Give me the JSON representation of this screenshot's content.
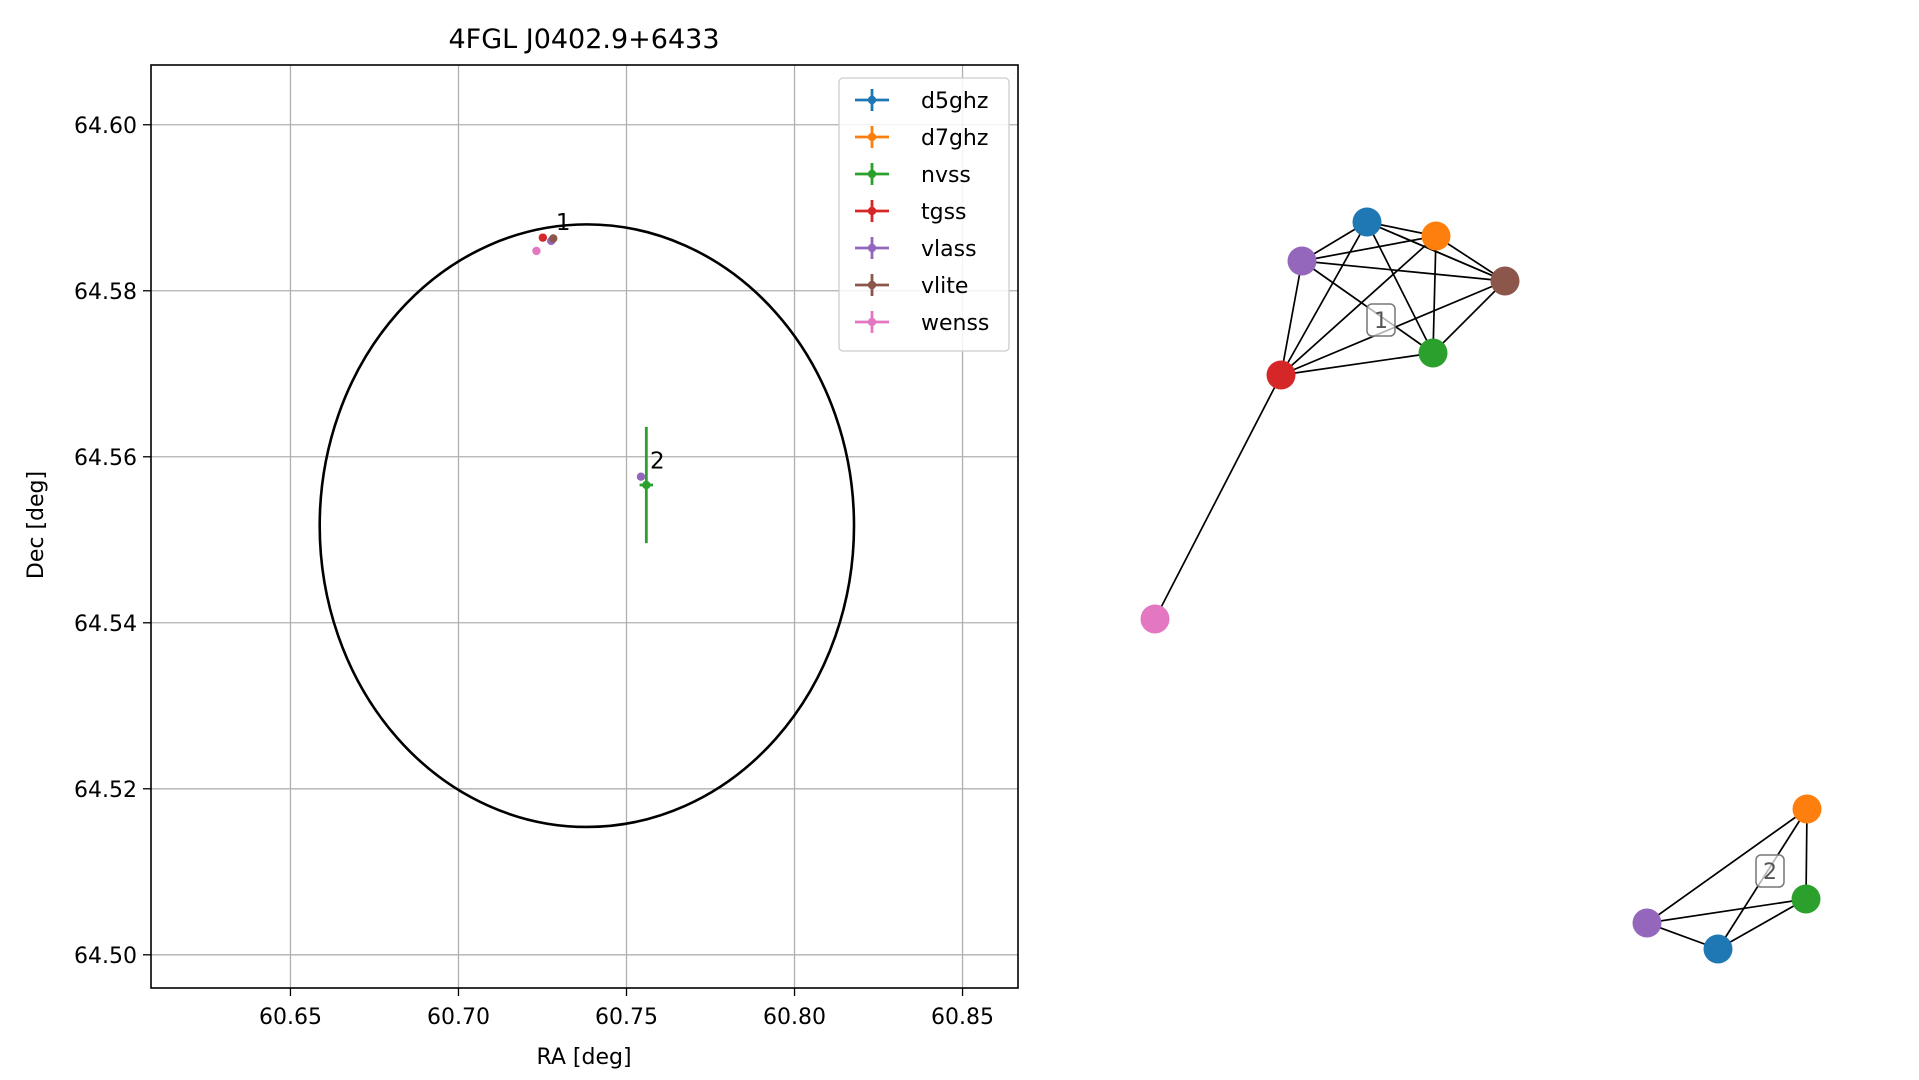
{
  "chart_data": [
    {
      "type": "scatter",
      "title": "4FGL J0402.9+6433",
      "xlabel": "RA [deg]",
      "ylabel": "Dec [deg]",
      "xlim": [
        60.6085,
        60.8665
      ],
      "ylim": [
        64.496,
        64.6072
      ],
      "xticks": [
        60.65,
        60.7,
        60.75,
        60.8,
        60.85
      ],
      "yticks": [
        64.5,
        64.52,
        64.54,
        64.56,
        64.58,
        64.6
      ],
      "xtick_labels": [
        "60.65",
        "60.70",
        "60.75",
        "60.80",
        "60.85"
      ],
      "ytick_labels": [
        "64.50",
        "64.52",
        "64.54",
        "64.56",
        "64.58",
        "64.60"
      ],
      "grid": true,
      "legend_position": "top-right",
      "ellipse": {
        "ra_center": 60.7382,
        "dec_center": 64.5517,
        "ra_semi_axis": 0.0795,
        "dec_semi_axis": 0.0363
      },
      "series": [
        {
          "name": "d5ghz",
          "color": "#1f77b4",
          "points": []
        },
        {
          "name": "d7ghz",
          "color": "#ff7f0e",
          "points": []
        },
        {
          "name": "nvss",
          "color": "#2ca02c",
          "points": [
            {
              "x": 60.7559,
              "y": 64.5566,
              "yerr": 0.007,
              "xerr": 0.002
            }
          ]
        },
        {
          "name": "tgss",
          "color": "#d62728",
          "points": [
            {
              "x": 60.7251,
              "y": 64.5864,
              "yerr": 0,
              "xerr": 0
            }
          ]
        },
        {
          "name": "vlass",
          "color": "#9467bd",
          "points": [
            {
              "x": 60.7276,
              "y": 64.586,
              "yerr": 0,
              "xerr": 0
            },
            {
              "x": 60.7543,
              "y": 64.5576,
              "yerr": 0,
              "xerr": 0
            }
          ]
        },
        {
          "name": "vlite",
          "color": "#8c564b",
          "points": [
            {
              "x": 60.7282,
              "y": 64.5863,
              "yerr": 0.0003,
              "xerr": 0.0006
            }
          ]
        },
        {
          "name": "wenss",
          "color": "#e377c2",
          "points": [
            {
              "x": 60.7232,
              "y": 64.5848,
              "yerr": 0,
              "xerr": 0
            }
          ]
        }
      ],
      "annotations": [
        {
          "text": "1",
          "x": 60.729,
          "y": 64.5873
        },
        {
          "text": "2",
          "x": 60.757,
          "y": 64.5586
        }
      ]
    },
    {
      "type": "network",
      "clusters": [
        {
          "label": "1",
          "nodes": [
            {
              "id": "d5ghz",
              "color": "#1f77b4"
            },
            {
              "id": "d7ghz",
              "color": "#ff7f0e"
            },
            {
              "id": "vlass",
              "color": "#9467bd"
            },
            {
              "id": "vlite",
              "color": "#8c564b"
            },
            {
              "id": "tgss",
              "color": "#d62728"
            },
            {
              "id": "nvss",
              "color": "#2ca02c"
            },
            {
              "id": "wenss",
              "color": "#e377c2"
            }
          ],
          "edges": [
            [
              "d5ghz",
              "d7ghz"
            ],
            [
              "d5ghz",
              "vlass"
            ],
            [
              "d5ghz",
              "vlite"
            ],
            [
              "d5ghz",
              "tgss"
            ],
            [
              "d5ghz",
              "nvss"
            ],
            [
              "d5ghz",
              "vlite"
            ],
            [
              "d7ghz",
              "vlass"
            ],
            [
              "d7ghz",
              "vlite"
            ],
            [
              "d7ghz",
              "tgss"
            ],
            [
              "d7ghz",
              "nvss"
            ],
            [
              "vlass",
              "vlite"
            ],
            [
              "vlass",
              "tgss"
            ],
            [
              "vlass",
              "nvss"
            ],
            [
              "tgss",
              "nvss"
            ],
            [
              "tgss",
              "vlite"
            ],
            [
              "nvss",
              "vlite"
            ],
            [
              "tgss",
              "wenss"
            ]
          ]
        },
        {
          "label": "2",
          "nodes": [
            {
              "id": "d7ghz",
              "color": "#ff7f0e"
            },
            {
              "id": "nvss",
              "color": "#2ca02c"
            },
            {
              "id": "vlass",
              "color": "#9467bd"
            },
            {
              "id": "d5ghz",
              "color": "#1f77b4"
            }
          ],
          "edges": [
            [
              "d7ghz",
              "nvss"
            ],
            [
              "d7ghz",
              "vlass"
            ],
            [
              "d7ghz",
              "d5ghz"
            ],
            [
              "vlass",
              "nvss"
            ],
            [
              "vlass",
              "d5ghz"
            ],
            [
              "nvss",
              "d5ghz"
            ]
          ]
        }
      ]
    }
  ]
}
